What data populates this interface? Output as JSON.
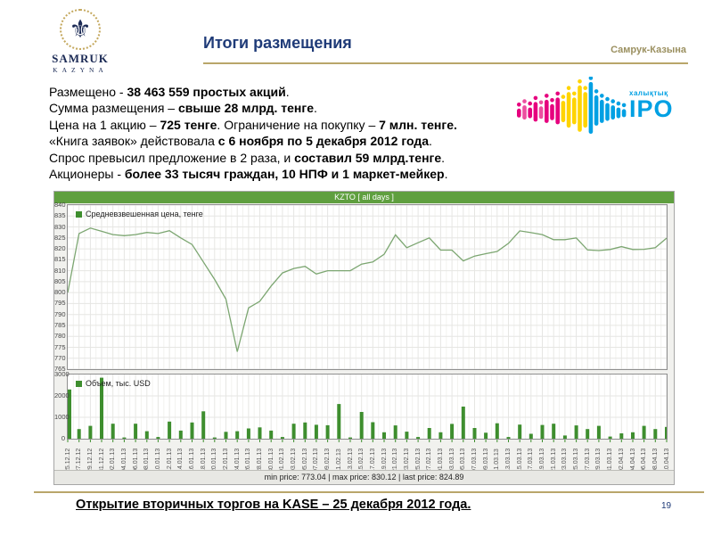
{
  "header": {
    "logo_line1": "SAMRUK",
    "logo_line2": "KAZYNA",
    "title": "Итоги размещения",
    "brand": "Самрук-Казына"
  },
  "body": {
    "lines": [
      [
        {
          "t": "Размещено - ",
          "b": false
        },
        {
          "t": "38 463 559 простых акций",
          "b": true
        },
        {
          "t": ".",
          "b": false
        }
      ],
      [
        {
          "t": "Сумма размещения – ",
          "b": false
        },
        {
          "t": "свыше 28 млрд. тенге",
          "b": true
        },
        {
          "t": ".",
          "b": false
        }
      ],
      [
        {
          "t": "Цена на 1 акцию – ",
          "b": false
        },
        {
          "t": "725 тенге",
          "b": true
        },
        {
          "t": ". Ограничение на покупку – ",
          "b": false
        },
        {
          "t": "7 млн. тенге.",
          "b": true
        }
      ],
      [
        {
          "t": "«Книга заявок» действовала ",
          "b": false
        },
        {
          "t": "с 6 ноября по 5 декабря 2012 года",
          "b": true
        },
        {
          "t": ".",
          "b": false
        }
      ],
      [
        {
          "t": "Спрос превысил предложение в 2 раза, и ",
          "b": false
        },
        {
          "t": "составил 59 млрд.тенге",
          "b": true
        },
        {
          "t": ".",
          "b": false
        }
      ],
      [
        {
          "t": "Акционеры - ",
          "b": false
        },
        {
          "t": "более 33 тысяч граждан, 10 НПФ и 1 маркет-мейкер",
          "b": true
        },
        {
          "t": ".",
          "b": false
        }
      ]
    ]
  },
  "ipo_logo": {
    "text_small": "халықтық",
    "text_big": "IPO",
    "text_color": "#00a0e3",
    "bars": [
      {
        "h": 10,
        "c": "#e6007e"
      },
      {
        "h": 16,
        "c": "#ec4fa0"
      },
      {
        "h": 12,
        "c": "#e6007e"
      },
      {
        "h": 22,
        "c": "#e6007e"
      },
      {
        "h": 14,
        "c": "#ec4fa0"
      },
      {
        "h": 26,
        "c": "#e6007e"
      },
      {
        "h": 18,
        "c": "#e6007e"
      },
      {
        "h": 30,
        "c": "#e6007e"
      },
      {
        "h": 24,
        "c": "#ffd400"
      },
      {
        "h": 40,
        "c": "#ffd400"
      },
      {
        "h": 30,
        "c": "#ffd400"
      },
      {
        "h": 52,
        "c": "#ffd400"
      },
      {
        "h": 40,
        "c": "#ffd400"
      },
      {
        "h": 58,
        "c": "#00a0e3"
      },
      {
        "h": 34,
        "c": "#00a0e3"
      },
      {
        "h": 26,
        "c": "#00a0e3"
      },
      {
        "h": 20,
        "c": "#00a0e3"
      },
      {
        "h": 16,
        "c": "#00a0e3"
      },
      {
        "h": 12,
        "c": "#00a0e3"
      },
      {
        "h": 9,
        "c": "#00a0e3"
      }
    ]
  },
  "chart": {
    "header": "KZTO [ all days ]",
    "stats_line": "min price: 773.04    |    max price: 830.12    |    last price: 824.89"
  },
  "chart_data": [
    {
      "type": "line",
      "title": "KZTO [ all days ]",
      "series_name": "Средневзвешенная цена, тенге",
      "line_color": "#7ca671",
      "x": [
        "25.12.12",
        "27.12.12",
        "29.12.12",
        "31.12.12",
        "02.01.13",
        "04.01.13",
        "06.01.13",
        "08.01.13",
        "10.01.13",
        "12.01.13",
        "14.01.13",
        "16.01.13",
        "18.01.13",
        "20.01.13",
        "22.01.13",
        "24.01.13",
        "26.01.13",
        "28.01.13",
        "30.01.13",
        "01.02.13",
        "03.02.13",
        "05.02.13",
        "07.02.13",
        "09.02.13",
        "11.02.13",
        "13.02.13",
        "15.02.13",
        "17.02.13",
        "19.02.13",
        "21.02.13",
        "23.02.13",
        "25.02.13",
        "27.02.13",
        "01.03.13",
        "03.03.13",
        "05.03.13",
        "07.03.13",
        "09.03.13",
        "11.03.13",
        "13.03.13",
        "15.03.13",
        "17.03.13",
        "19.03.13",
        "21.03.13",
        "23.03.13",
        "25.03.13",
        "27.03.13",
        "29.03.13",
        "31.03.13",
        "02.04.13",
        "04.04.13",
        "06.04.13",
        "08.04.13",
        "10.04.13"
      ],
      "values": [
        800,
        827,
        829.5,
        828,
        826.5,
        826,
        826.5,
        827.5,
        827,
        828.3,
        825,
        822,
        814,
        806,
        797,
        773,
        793,
        796,
        803,
        809,
        811,
        812,
        808.5,
        810,
        810,
        810,
        813,
        814,
        817.5,
        826.4,
        820.5,
        822.8,
        825,
        819.4,
        819.4,
        814.5,
        816.7,
        817.8,
        818.8,
        822.5,
        828.2,
        827.4,
        826.5,
        824.2,
        824.2,
        825,
        819.5,
        819.2,
        819.7,
        821,
        819.7,
        819.8,
        820.5,
        824.9
      ],
      "ylim": [
        765,
        840
      ],
      "ytick_step": 5,
      "min_price": 773.04,
      "max_price": 830.12,
      "last_price": 824.89,
      "grid": true,
      "legend_position": "top-left"
    },
    {
      "type": "bar",
      "series_name": "Объем, тыс. USD",
      "bar_color": "#3e8e2e",
      "x": [
        "25.12.12",
        "27.12.12",
        "29.12.12",
        "31.12.12",
        "02.01.13",
        "04.01.13",
        "06.01.13",
        "08.01.13",
        "10.01.13",
        "12.01.13",
        "14.01.13",
        "16.01.13",
        "18.01.13",
        "20.01.13",
        "22.01.13",
        "24.01.13",
        "26.01.13",
        "28.01.13",
        "30.01.13",
        "01.02.13",
        "03.02.13",
        "05.02.13",
        "07.02.13",
        "09.02.13",
        "11.02.13",
        "13.02.13",
        "15.02.13",
        "17.02.13",
        "19.02.13",
        "21.02.13",
        "23.02.13",
        "25.02.13",
        "27.02.13",
        "01.03.13",
        "03.03.13",
        "05.03.13",
        "07.03.13",
        "09.03.13",
        "11.03.13",
        "13.03.13",
        "15.03.13",
        "17.03.13",
        "19.03.13",
        "21.03.13",
        "23.03.13",
        "25.03.13",
        "27.03.13",
        "29.03.13",
        "31.03.13",
        "02.04.13",
        "04.04.13",
        "06.04.13",
        "08.04.13",
        "10.04.13"
      ],
      "values": [
        2300,
        450,
        600,
        2850,
        700,
        60,
        700,
        350,
        80,
        800,
        380,
        760,
        1280,
        60,
        320,
        350,
        480,
        530,
        380,
        80,
        700,
        760,
        650,
        630,
        1620,
        60,
        1250,
        770,
        300,
        620,
        330,
        80,
        500,
        300,
        690,
        1500,
        500,
        280,
        720,
        80,
        660,
        230,
        640,
        700,
        150,
        620,
        450,
        600,
        100,
        250,
        300,
        600,
        450,
        550
      ],
      "ylim": [
        0,
        3000
      ],
      "yticks": [
        0,
        1000,
        2000,
        3000
      ],
      "grid": true,
      "legend_position": "top-left"
    }
  ],
  "footer": {
    "text": "Открытие вторичных торгов на KASE – 25 декабря 2012 года.",
    "page": "19"
  },
  "colors": {
    "title_blue": "#1f3b78",
    "gold_rule": "#b9a66a",
    "brand_gold": "#9b9060",
    "chart_header_green": "#5f9f3f",
    "line_green": "#7ca671",
    "bar_green": "#3e8e2e",
    "navy_logo": "#1b2a55",
    "ipo_blue": "#00a0e3",
    "ipo_magenta": "#e6007e",
    "ipo_yellow": "#ffd400"
  }
}
